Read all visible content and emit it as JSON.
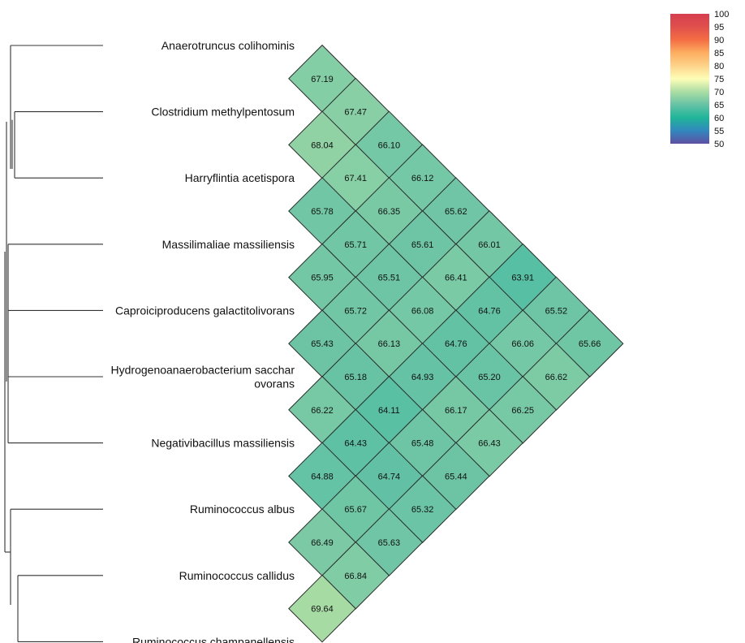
{
  "chart_data": {
    "type": "heatmap",
    "layout": "triangular",
    "species": [
      [
        "Anaerotruncus colihominis"
      ],
      [
        "Clostridium methylpentosum"
      ],
      [
        "Harryflintia acetispora"
      ],
      [
        "Massilimaliae massiliensis"
      ],
      [
        "Caproiciproducens galactitolivorans"
      ],
      [
        "Hydrogenoanaerobacterium sacchar",
        "ovorans"
      ],
      [
        "Negativibacillus massiliensis"
      ],
      [
        "Ruminococcus albus"
      ],
      [
        "Ruminococcus callidus"
      ],
      [
        "Ruminococcus champanellensis"
      ]
    ],
    "cells": [
      {
        "i": 0,
        "j": 1,
        "label": "67.19",
        "value": 67.19
      },
      {
        "i": 0,
        "j": 2,
        "label": "67.47",
        "value": 67.47
      },
      {
        "i": 1,
        "j": 2,
        "label": "68.04",
        "value": 68.04
      },
      {
        "i": 0,
        "j": 3,
        "label": "66.10",
        "value": 66.1
      },
      {
        "i": 1,
        "j": 3,
        "label": "67.41",
        "value": 67.41
      },
      {
        "i": 2,
        "j": 3,
        "label": "65.78",
        "value": 65.78
      },
      {
        "i": 0,
        "j": 4,
        "label": "66.12",
        "value": 66.12
      },
      {
        "i": 1,
        "j": 4,
        "label": "66.35",
        "value": 66.35
      },
      {
        "i": 2,
        "j": 4,
        "label": "65.71",
        "value": 65.71
      },
      {
        "i": 3,
        "j": 4,
        "label": "65.95",
        "value": 65.95
      },
      {
        "i": 0,
        "j": 5,
        "label": "65.62",
        "value": 65.62
      },
      {
        "i": 1,
        "j": 5,
        "label": "65.61",
        "value": 65.61
      },
      {
        "i": 2,
        "j": 5,
        "label": "65.51",
        "value": 65.51
      },
      {
        "i": 3,
        "j": 5,
        "label": "65.72",
        "value": 65.72
      },
      {
        "i": 4,
        "j": 5,
        "label": "65.43",
        "value": 65.43
      },
      {
        "i": 0,
        "j": 6,
        "label": "66.01",
        "value": 66.01
      },
      {
        "i": 1,
        "j": 6,
        "label": "66.41",
        "value": 66.41
      },
      {
        "i": 2,
        "j": 6,
        "label": "66.08",
        "value": 66.08
      },
      {
        "i": 3,
        "j": 6,
        "label": "66.13",
        "value": 66.13
      },
      {
        "i": 4,
        "j": 6,
        "label": "65.18",
        "value": 65.18
      },
      {
        "i": 5,
        "j": 6,
        "label": "66.22",
        "value": 66.22
      },
      {
        "i": 0,
        "j": 7,
        "label": "63.91",
        "value": 63.91
      },
      {
        "i": 1,
        "j": 7,
        "label": "64.76",
        "value": 64.76
      },
      {
        "i": 2,
        "j": 7,
        "label": "64.76",
        "value": 64.76
      },
      {
        "i": 3,
        "j": 7,
        "label": "64.93",
        "value": 64.93
      },
      {
        "i": 4,
        "j": 7,
        "label": "64.11",
        "value": 64.11
      },
      {
        "i": 5,
        "j": 7,
        "label": "64.43",
        "value": 64.43
      },
      {
        "i": 6,
        "j": 7,
        "label": "64.88",
        "value": 64.88
      },
      {
        "i": 0,
        "j": 8,
        "label": "65.52",
        "value": 65.52
      },
      {
        "i": 1,
        "j": 8,
        "label": "66.06",
        "value": 66.06
      },
      {
        "i": 2,
        "j": 8,
        "label": "65.20",
        "value": 65.2
      },
      {
        "i": 3,
        "j": 8,
        "label": "66.17",
        "value": 66.17
      },
      {
        "i": 4,
        "j": 8,
        "label": "65.48",
        "value": 65.48
      },
      {
        "i": 5,
        "j": 8,
        "label": "64.74",
        "value": 64.74
      },
      {
        "i": 6,
        "j": 8,
        "label": "65.67",
        "value": 65.67
      },
      {
        "i": 7,
        "j": 8,
        "label": "66.49",
        "value": 66.49
      },
      {
        "i": 0,
        "j": 9,
        "label": "65.66",
        "value": 65.66
      },
      {
        "i": 1,
        "j": 9,
        "label": "66.62",
        "value": 66.62
      },
      {
        "i": 2,
        "j": 9,
        "label": "66.25",
        "value": 66.25
      },
      {
        "i": 3,
        "j": 9,
        "label": "66.43",
        "value": 66.43
      },
      {
        "i": 4,
        "j": 9,
        "label": "65.44",
        "value": 65.44
      },
      {
        "i": 5,
        "j": 9,
        "label": "65.32",
        "value": 65.32
      },
      {
        "i": 6,
        "j": 9,
        "label": "65.63",
        "value": 65.63
      },
      {
        "i": 7,
        "j": 9,
        "label": "66.84",
        "value": 66.84
      },
      {
        "i": 8,
        "j": 9,
        "label": "69.64",
        "value": 69.64
      }
    ],
    "colorbar": {
      "min": 50,
      "max": 100,
      "ticks": [
        "100",
        "95",
        "90",
        "85",
        "80",
        "75",
        "70",
        "65",
        "60",
        "55",
        "50"
      ],
      "stops": [
        {
          "value": 50,
          "color": "#5e4fa2"
        },
        {
          "value": 55,
          "color": "#3288bd"
        },
        {
          "value": 60,
          "color": "#1fb59a"
        },
        {
          "value": 65,
          "color": "#66c2a5"
        },
        {
          "value": 70,
          "color": "#abdda4"
        },
        {
          "value": 75,
          "color": "#fefeb7"
        },
        {
          "value": 80,
          "color": "#fdd38a"
        },
        {
          "value": 85,
          "color": "#fdae61"
        },
        {
          "value": 90,
          "color": "#f46d43"
        },
        {
          "value": 95,
          "color": "#e0504d"
        },
        {
          "value": 100,
          "color": "#d53e4f"
        }
      ]
    },
    "dendrogram": [
      {
        "type": "leaf",
        "index": 0
      },
      {
        "type": "leaf",
        "index": 1
      },
      {
        "type": "leaf",
        "index": 2
      },
      {
        "type": "leaf",
        "index": 3
      },
      {
        "type": "leaf",
        "index": 4
      },
      {
        "type": "leaf",
        "index": 5
      },
      {
        "type": "leaf",
        "index": 6
      },
      {
        "type": "leaf",
        "index": 7
      },
      {
        "type": "leaf",
        "index": 8
      },
      {
        "type": "leaf",
        "index": 9
      }
    ]
  }
}
